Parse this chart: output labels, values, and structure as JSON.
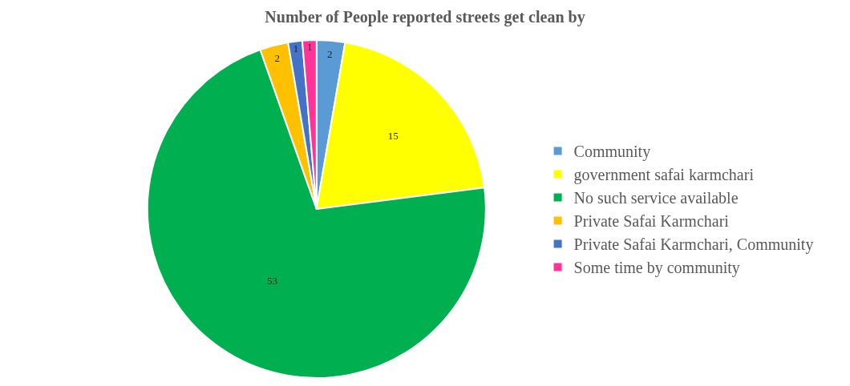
{
  "chart_data": {
    "type": "pie",
    "title": "Number of People reported streets get clean by",
    "categories": [
      "Community",
      "government safai karmchari",
      "No such service available",
      "Private Safai Karmchari",
      "Private Safai Karmchari, Community",
      "Some time by community"
    ],
    "values": [
      2,
      15,
      53,
      2,
      1,
      1
    ],
    "colors": [
      "#5b9bd5",
      "#ffff00",
      "#00b050",
      "#ffc000",
      "#4472c4",
      "#ff3399"
    ],
    "data_labels": true,
    "legend": "right"
  }
}
